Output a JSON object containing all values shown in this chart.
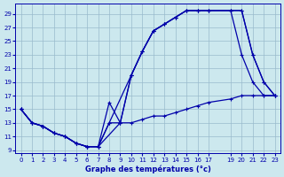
{
  "bg_color": "#cce8ee",
  "grid_color": "#99bbcc",
  "line_color": "#0000aa",
  "xlim": [
    -0.5,
    23.5
  ],
  "ylim": [
    8.5,
    30.5
  ],
  "x_ticks": [
    0,
    1,
    2,
    3,
    4,
    5,
    6,
    7,
    8,
    9,
    10,
    11,
    12,
    13,
    14,
    15,
    16,
    17,
    19,
    20,
    21,
    22,
    23
  ],
  "y_ticks": [
    9,
    11,
    13,
    15,
    17,
    19,
    21,
    23,
    25,
    27,
    29
  ],
  "xlabel": "Graphe des températures (°c)",
  "curve1_x": [
    0,
    1,
    2,
    3,
    4,
    5,
    6,
    7,
    8,
    10,
    11,
    12,
    13,
    14,
    15,
    16,
    17,
    19,
    20,
    21,
    22,
    23
  ],
  "curve1_y": [
    15,
    13,
    12.5,
    11.5,
    11,
    10,
    9.5,
    9.5,
    13,
    20,
    23.5,
    26.5,
    27.5,
    28.5,
    29.5,
    29.5,
    29.5,
    29.5,
    29.5,
    23,
    19,
    17
  ],
  "curve2_x": [
    0,
    1,
    2,
    3,
    4,
    5,
    6,
    7,
    9,
    10,
    11,
    12,
    13,
    14,
    15,
    16,
    17,
    19,
    20,
    21,
    22,
    23
  ],
  "curve2_y": [
    15,
    13,
    12.5,
    11.5,
    11,
    10,
    9.5,
    9.5,
    13,
    20,
    23.5,
    26.5,
    27.5,
    28.5,
    29.5,
    29.5,
    29.5,
    29.5,
    29.5,
    23,
    19,
    17
  ],
  "curve3_x": [
    0,
    1,
    2,
    3,
    4,
    5,
    6,
    7,
    8,
    9,
    10,
    11,
    12,
    13,
    14,
    15,
    16,
    17,
    19,
    20,
    21,
    22,
    23
  ],
  "curve3_y": [
    15,
    13,
    12.5,
    11.5,
    11,
    10,
    9.5,
    9.5,
    16,
    13,
    20,
    23.5,
    26.5,
    27.5,
    28.5,
    29.5,
    29.5,
    29.5,
    29.5,
    23,
    19,
    17,
    17
  ],
  "curve_min_x": [
    0,
    1,
    2,
    3,
    4,
    5,
    6,
    7,
    8,
    9,
    10,
    11,
    12,
    13,
    14,
    15,
    16,
    17,
    19,
    20,
    21,
    22,
    23
  ],
  "curve_min_y": [
    15,
    13,
    12.5,
    11.5,
    11,
    10,
    9.5,
    9.5,
    13,
    13,
    13,
    13.5,
    14,
    14,
    14.5,
    15,
    15.5,
    16,
    16.5,
    17,
    17,
    17,
    17
  ]
}
